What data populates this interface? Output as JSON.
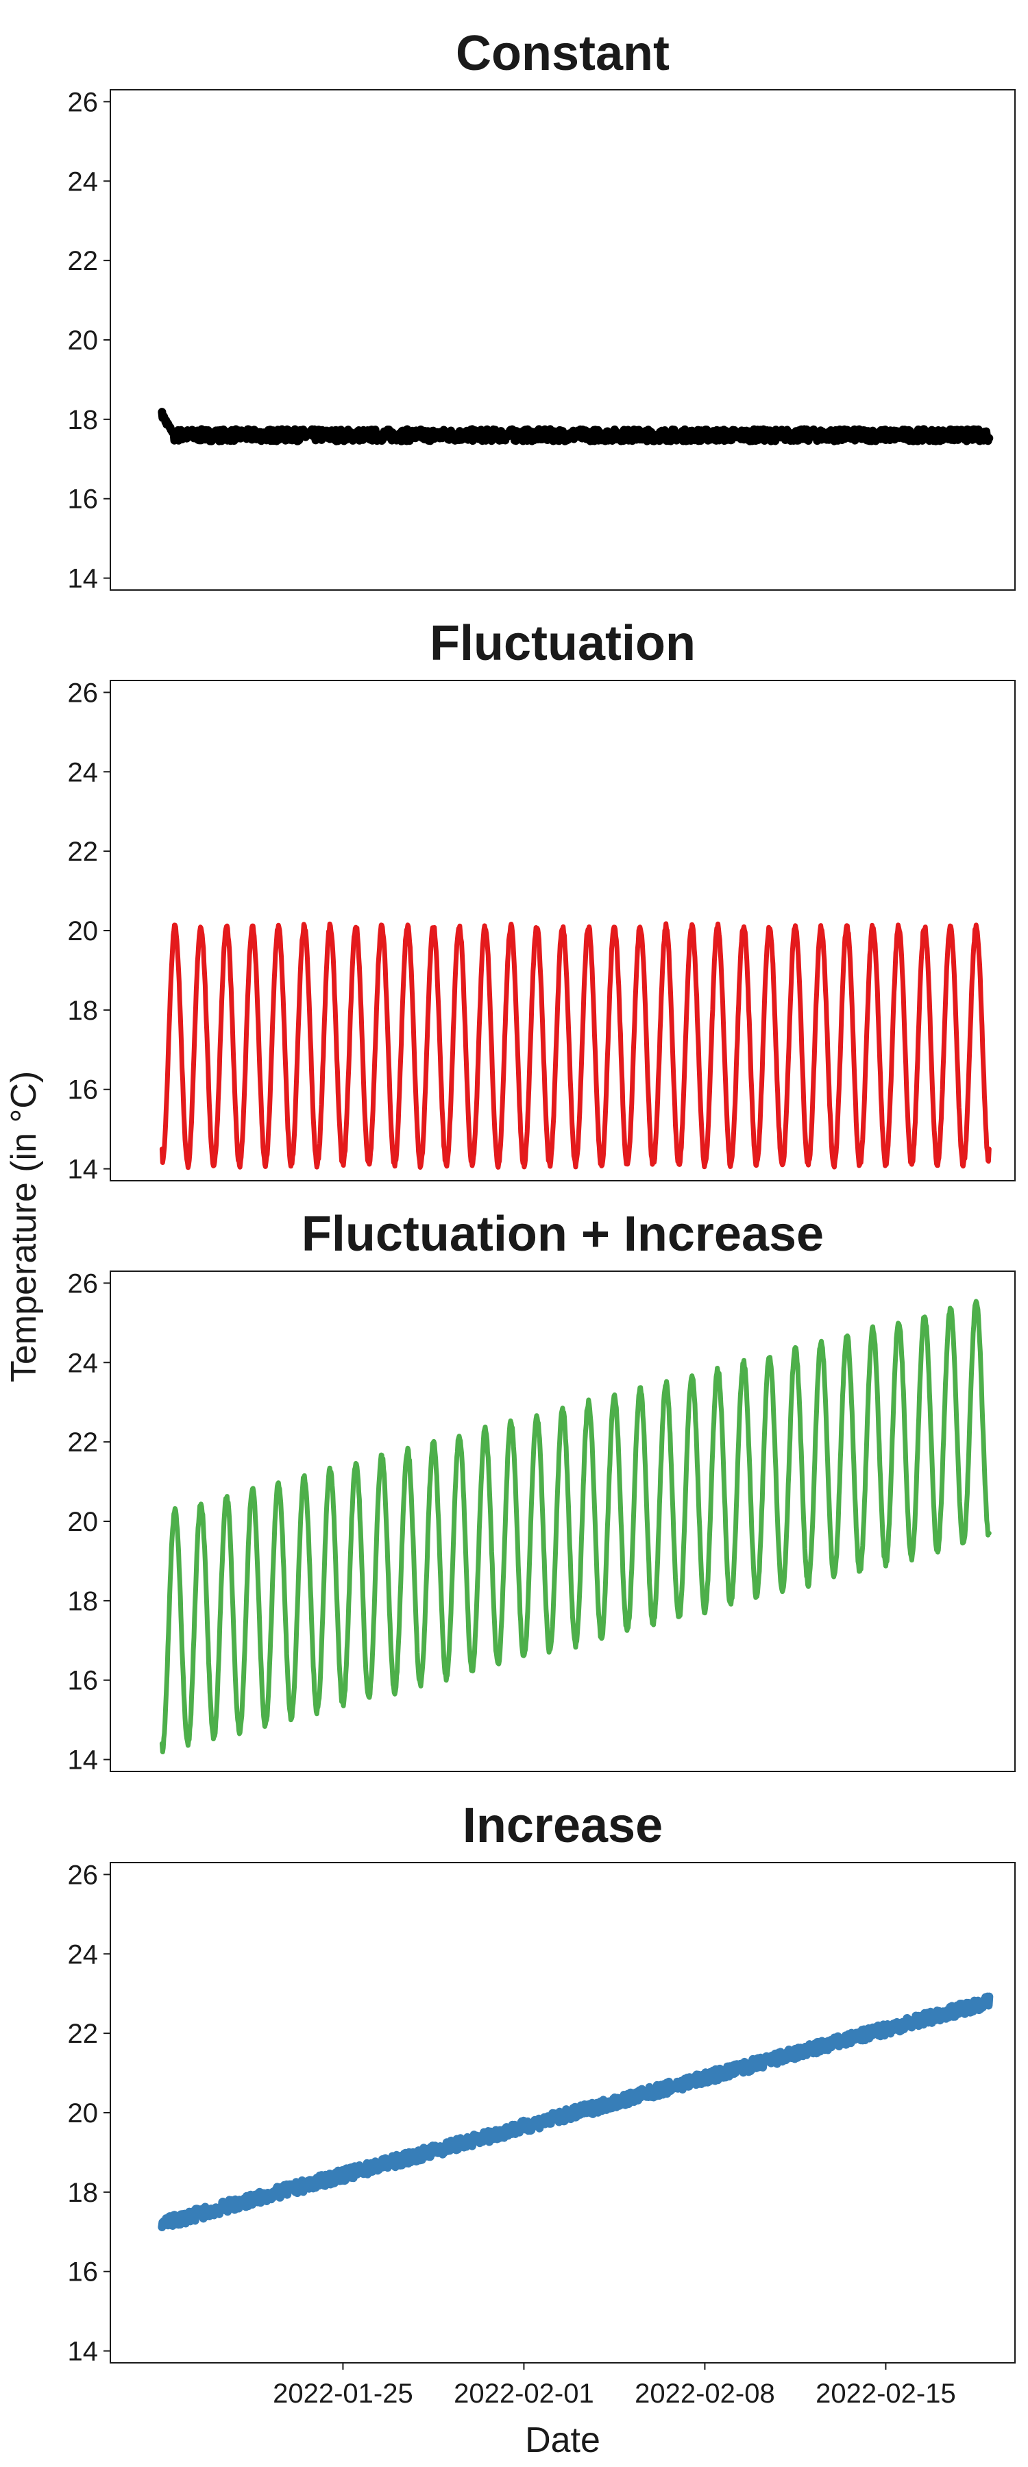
{
  "figure": {
    "ylabel": "Temperature (in °C)",
    "xlabel": "Date"
  },
  "chart_data": [
    {
      "type": "line",
      "title": "Constant",
      "color": "#000000",
      "ylim": [
        13.7,
        26.3
      ],
      "yticks": [
        14,
        16,
        18,
        20,
        22,
        24,
        26
      ],
      "xlim": [
        "2022-01-16",
        "2022-02-20"
      ],
      "grid": false,
      "series": [
        {
          "pattern": "constant",
          "start": "2022-01-18",
          "end": "2022-02-19",
          "mean": 17.6,
          "noise": 0.15,
          "initial_spike": 18.2
        }
      ]
    },
    {
      "type": "line",
      "title": "Fluctuation",
      "color": "#e41a1c",
      "ylim": [
        13.7,
        26.3
      ],
      "yticks": [
        14,
        16,
        18,
        20,
        22,
        24,
        26
      ],
      "xlim": [
        "2022-01-16",
        "2022-02-20"
      ],
      "grid": false,
      "series": [
        {
          "pattern": "daily-fluctuation",
          "start": "2022-01-18",
          "end": "2022-02-19",
          "min": 14.1,
          "max": 20.1,
          "period_days": 1,
          "start_value": 14.5,
          "end_value": 14.5
        }
      ]
    },
    {
      "type": "line",
      "title": "Fluctuation + Increase",
      "color": "#4daf4a",
      "ylim": [
        13.7,
        26.3
      ],
      "yticks": [
        14,
        16,
        18,
        20,
        22,
        24,
        26
      ],
      "xlim": [
        "2022-01-16",
        "2022-02-20"
      ],
      "grid": false,
      "series": [
        {
          "pattern": "daily-fluctuation-increasing",
          "start": "2022-01-18",
          "end": "2022-02-19",
          "min_start": 14.2,
          "min_end": 19.6,
          "max_start": 20.2,
          "max_end": 25.6,
          "period_days": 1,
          "start_value": 14.4,
          "end_value": 19.7
        }
      ]
    },
    {
      "type": "line",
      "title": "Increase",
      "color": "#377eb8",
      "ylim": [
        13.7,
        26.3
      ],
      "yticks": [
        14,
        16,
        18,
        20,
        22,
        24,
        26
      ],
      "xlim": [
        "2022-01-16",
        "2022-02-20"
      ],
      "xticks": [
        "2022-01-25",
        "2022-02-01",
        "2022-02-08",
        "2022-02-15"
      ],
      "grid": false,
      "series": [
        {
          "pattern": "linear-increase",
          "start": "2022-01-18",
          "end": "2022-02-19",
          "start_value": 17.2,
          "end_value": 22.8,
          "noise": 0.15
        }
      ]
    }
  ]
}
